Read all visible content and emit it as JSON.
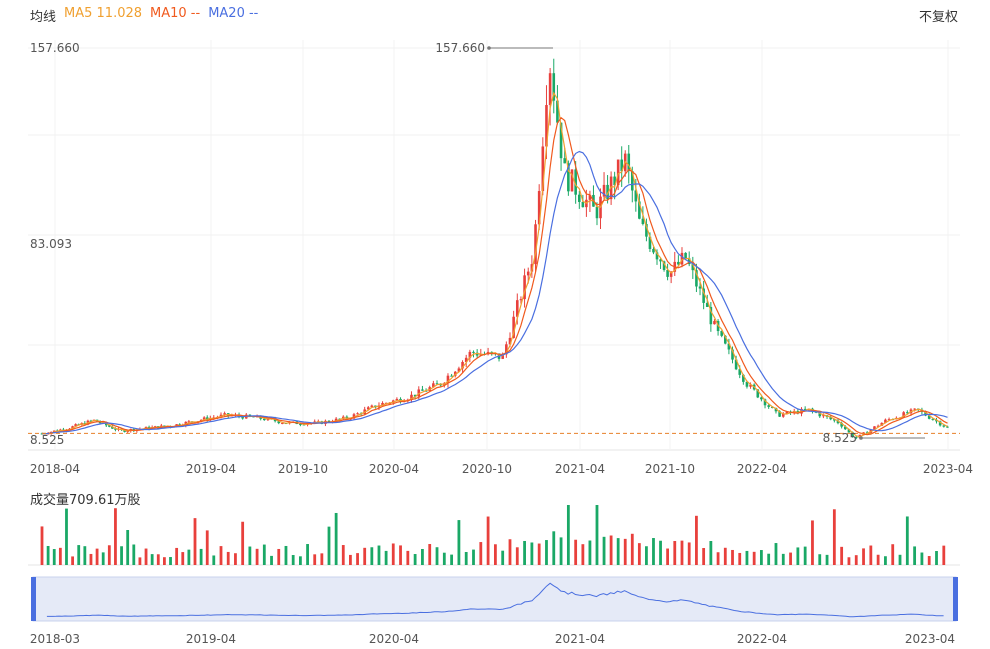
{
  "legend": {
    "title": "均线",
    "ma5_label": "MA5 11.028",
    "ma10_label": "MA10 --",
    "ma20_label": "MA20 --"
  },
  "adjust_button": "不复权",
  "volume_title": "成交量709.61万股",
  "colors": {
    "up": "#e8403c",
    "down": "#1aa866",
    "ma5": "#f0a030",
    "ma10": "#f05a1e",
    "ma20": "#4a6fe0",
    "brush": "#4a6fe0"
  },
  "chart_data": {
    "type": "candlestick",
    "y_ticks": [
      "157.660",
      "83.093",
      "8.525"
    ],
    "ylim": [
      8.525,
      157.66
    ],
    "x_ticks": [
      "2018-04",
      "2019-04",
      "2019-10",
      "2020-04",
      "2020-10",
      "2021-04",
      "2021-10",
      "2022-04",
      "2023-04"
    ],
    "x_tick_dates": [
      "2018-04",
      "2019-04",
      "2019-10",
      "2020-04",
      "2020-10",
      "2021-04",
      "2021-10",
      "2022-04",
      "2023-04"
    ],
    "annotations": [
      {
        "label": "157.660",
        "date": "2021-02",
        "value": 157.66
      },
      {
        "label": "8.525",
        "date": "2022-10",
        "value": 8.525
      }
    ],
    "reference_line": 11.03,
    "series_trend": [
      [
        "2018-03",
        11
      ],
      [
        "2018-05",
        13
      ],
      [
        "2018-07",
        16
      ],
      [
        "2018-09",
        12
      ],
      [
        "2018-11",
        13
      ],
      [
        "2019-01",
        14
      ],
      [
        "2019-03",
        16
      ],
      [
        "2019-05",
        18
      ],
      [
        "2019-07",
        17
      ],
      [
        "2019-09",
        15
      ],
      [
        "2019-11",
        15
      ],
      [
        "2020-01",
        17
      ],
      [
        "2020-03",
        22
      ],
      [
        "2020-05",
        25
      ],
      [
        "2020-07",
        30
      ],
      [
        "2020-09",
        42
      ],
      [
        "2020-11",
        40
      ],
      [
        "2021-01",
        80
      ],
      [
        "2021-02",
        155
      ],
      [
        "2021-03",
        110
      ],
      [
        "2021-05",
        95
      ],
      [
        "2021-07",
        115
      ],
      [
        "2021-08",
        90
      ],
      [
        "2021-10",
        72
      ],
      [
        "2021-11",
        78
      ],
      [
        "2022-01",
        50
      ],
      [
        "2022-03",
        30
      ],
      [
        "2022-05",
        18
      ],
      [
        "2022-07",
        20
      ],
      [
        "2022-09",
        15
      ],
      [
        "2022-10",
        9
      ],
      [
        "2022-12",
        16
      ],
      [
        "2023-02",
        20
      ],
      [
        "2023-04",
        13
      ]
    ],
    "volume": {
      "title": "成交量709.61万股"
    },
    "navigator": {
      "x_ticks": [
        "2018-03",
        "2019-04",
        "2020-04",
        "2021-04",
        "2022-04",
        "2023-04"
      ]
    }
  }
}
